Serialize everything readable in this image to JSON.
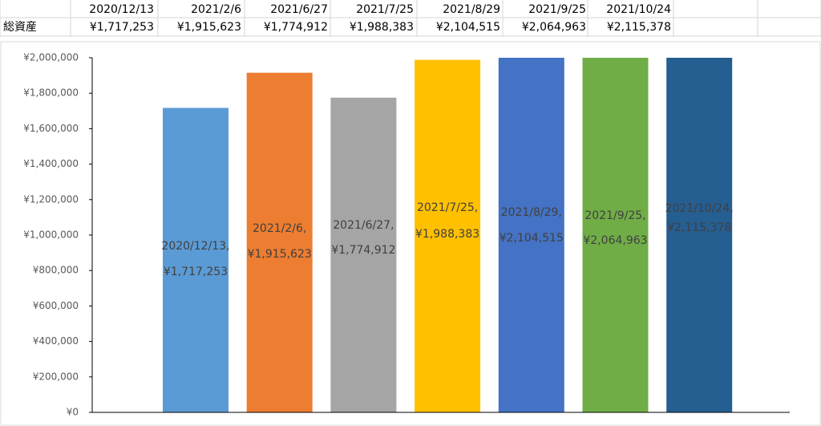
{
  "table": {
    "header": [
      "2020/12/13",
      "2021/2/6",
      "2021/6/27",
      "2021/7/25",
      "2021/8/29",
      "2021/9/25",
      "2021/10/24"
    ],
    "rows": [
      [
        "総資産",
        "¥1,717,253",
        "¥1,915,623",
        "¥1,774,912",
        "¥1,988,383",
        "¥2,104,515",
        "¥2,064,963",
        "¥2,115,378"
      ]
    ]
  },
  "chart_data": {
    "type": "bar",
    "categories": [
      "2020/12/13",
      "2021/2/6",
      "2021/6/27",
      "2021/7/25",
      "2021/8/29",
      "2021/9/25",
      "2021/10/24"
    ],
    "values": [
      1717253,
      1915623,
      1774912,
      1988383,
      2104515,
      2064963,
      2115378
    ],
    "value_labels": [
      "¥1,717,253",
      "¥1,915,623",
      "¥1,774,912",
      "¥1,988,383",
      "¥2,104,515",
      "¥2,064,963",
      "¥2,115,378"
    ],
    "label_separator": ",",
    "colors": [
      "#5b9bd5",
      "#ed7d31",
      "#a5a5a5",
      "#ffc000",
      "#4472c4",
      "#70ad47",
      "#255e91"
    ],
    "ylim": [
      0,
      2000000
    ],
    "yticks": [
      {
        "value": 0,
        "label": "¥0"
      },
      {
        "value": 200000,
        "label": "¥200,000"
      },
      {
        "value": 400000,
        "label": "¥400,000"
      },
      {
        "value": 600000,
        "label": "¥600,000"
      },
      {
        "value": 800000,
        "label": "¥800,000"
      },
      {
        "value": 1000000,
        "label": "¥1,000,000"
      },
      {
        "value": 1200000,
        "label": "¥1,200,000"
      },
      {
        "value": 1400000,
        "label": "¥1,400,000"
      },
      {
        "value": 1600000,
        "label": "¥1,600,000"
      },
      {
        "value": 1800000,
        "label": "¥1,800,000"
      },
      {
        "value": 2000000,
        "label": "¥2,000,000"
      }
    ],
    "grid": false
  }
}
